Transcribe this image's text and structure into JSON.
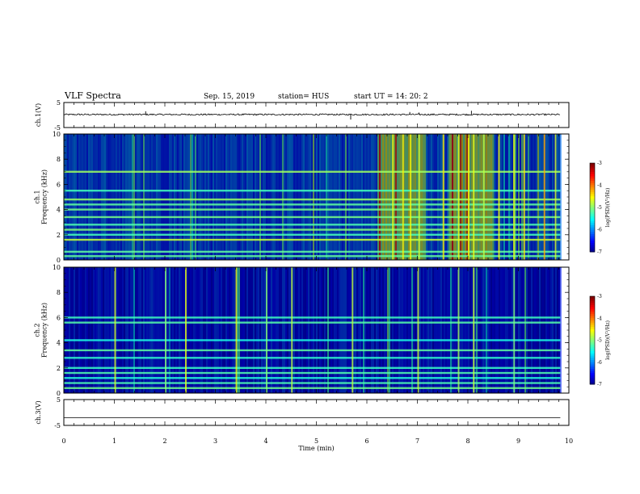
{
  "header": {
    "title": "VLF Spectra",
    "date": "Sep. 15, 2019",
    "station": "station= HUS",
    "start": "start  UT  =   14: 20: 2"
  },
  "chart_data": [
    {
      "type": "line",
      "ylabel": "ch.1(V)",
      "ylim": [
        -5,
        5
      ],
      "yticks": [
        "5",
        "-5"
      ],
      "baseline": 0.2,
      "noise": 0.3,
      "spikes": [
        {
          "x": 1.62,
          "y": 1.5
        },
        {
          "x": 5.68,
          "y": -1.8
        },
        {
          "x": 6.85,
          "y": 1.2
        },
        {
          "x": 7.03,
          "y": 1.0
        },
        {
          "x": 8.07,
          "y": 1.7
        }
      ]
    },
    {
      "type": "heatmap",
      "ylabel": "ch.1\nFrequency (kHz)",
      "ylim": [
        0,
        10
      ],
      "yticks": [
        "0",
        "2",
        "4",
        "6",
        "8",
        "10"
      ],
      "colorbar": {
        "label": "log(PSD)(V²/Hz)",
        "range": [
          -7,
          -3
        ],
        "ticks": [
          "-3",
          "-4",
          "-5",
          "-6",
          "-7"
        ]
      },
      "base_level": -6.4,
      "bands_khz": [
        0.3,
        0.65,
        1.6,
        2.0,
        2.4,
        2.8,
        3.4,
        4.0,
        4.4,
        4.8,
        5.5,
        7.0
      ],
      "bright_segments_min": [
        [
          6.2,
          7.15
        ],
        [
          7.6,
          8.5
        ]
      ],
      "sferic_bursts_min": [
        6.5,
        6.7,
        6.85,
        7.02,
        7.5,
        7.8,
        8.0,
        8.1,
        8.3,
        8.6,
        8.9,
        9.1,
        9.5,
        9.72
      ]
    },
    {
      "type": "heatmap",
      "ylabel": "ch.2\nFrequency (kHz)",
      "ylim": [
        0,
        10
      ],
      "yticks": [
        "0",
        "2",
        "4",
        "6",
        "8",
        "10"
      ],
      "colorbar": {
        "label": "log(PSD)(V²/Hz)",
        "range": [
          -7,
          -3
        ],
        "ticks": [
          "-3",
          "-4",
          "-5",
          "-6",
          "-7"
        ]
      },
      "base_level": -6.7,
      "bands_khz": [
        0.4,
        0.8,
        1.2,
        1.6,
        2.0,
        2.8,
        3.4,
        4.2,
        5.6,
        6.0
      ],
      "bright_segments_min": [],
      "sferic_bursts_min": [
        1.0,
        2.0,
        2.4,
        3.4,
        4.0,
        4.5,
        5.7,
        7.0,
        7.8,
        8.1,
        8.9
      ]
    },
    {
      "type": "line",
      "ylabel": "ch.3(V)",
      "ylim": [
        -5,
        5
      ],
      "yticks": [
        "5",
        "-5"
      ],
      "baseline": -2,
      "noise": 0,
      "spikes": []
    }
  ],
  "xaxis": {
    "label": "Time (min)",
    "range": [
      0,
      10
    ],
    "data_end": 9.83,
    "ticks": [
      "0",
      "1",
      "2",
      "3",
      "4",
      "5",
      "6",
      "7",
      "8",
      "9",
      "10"
    ]
  },
  "colors": {
    "background": "#00003a",
    "trace": "#000000"
  }
}
